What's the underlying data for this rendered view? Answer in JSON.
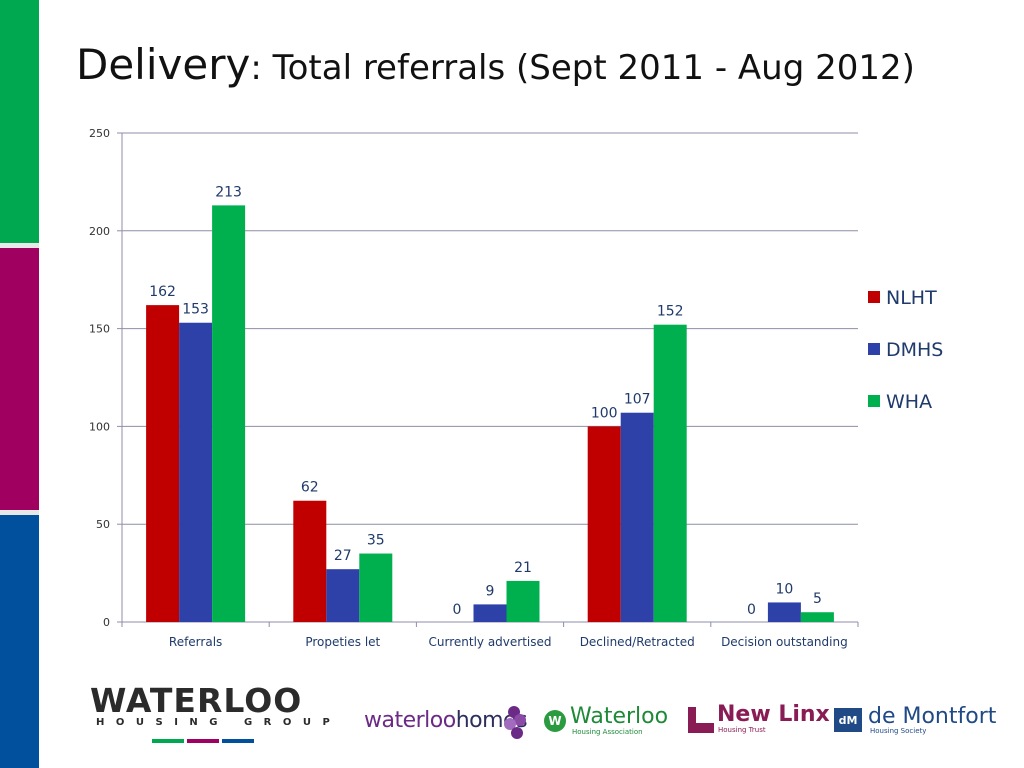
{
  "title": {
    "main": "Delivery",
    "rest": ": Total referrals (Sept 2011 - Aug 2012)"
  },
  "colors": {
    "nlht": "#c00000",
    "dmhs": "#2e41a8",
    "wha": "#00b04f",
    "stripe_green": "#00a94f",
    "stripe_magenta": "#a00060",
    "stripe_blue": "#00509e"
  },
  "chart_data": {
    "type": "bar",
    "title": "",
    "xlabel": "",
    "ylabel": "",
    "categories": [
      "Referrals",
      "Propeties let",
      "Currently advertised",
      "Declined/Retracted",
      "Decision outstanding"
    ],
    "series": [
      {
        "name": "NLHT",
        "values": [
          162,
          62,
          0,
          100,
          0
        ],
        "color": "#c00000"
      },
      {
        "name": "DMHS",
        "values": [
          153,
          27,
          9,
          107,
          10
        ],
        "color": "#2e41a8"
      },
      {
        "name": "WHA",
        "values": [
          213,
          35,
          21,
          152,
          5
        ],
        "color": "#00b04f"
      }
    ],
    "data_labels": [
      [
        "162",
        "62",
        "0",
        "100",
        "0"
      ],
      [
        "153",
        "27",
        "9",
        "107",
        "10"
      ],
      [
        "213",
        "35",
        "21",
        "152",
        "5"
      ]
    ],
    "ylim": [
      0,
      250
    ],
    "yticks": [
      0,
      50,
      100,
      150,
      200,
      250
    ],
    "grid": true,
    "legend_position": "right"
  },
  "footer": {
    "waterloo_group": {
      "name": "WATERLOO",
      "tagline": "HOUSING GROUP"
    },
    "waterloo_homes": {
      "part1": "waterloo",
      "part2": "homes"
    },
    "waterloo_ha": {
      "mark": "W",
      "name": "Waterloo",
      "tagline": "Housing Association"
    },
    "new_linx": {
      "name": "New Linx",
      "tagline": "Housing Trust"
    },
    "de_montfort": {
      "mark": "dM",
      "name": "de Montfort",
      "tagline": "Housing Society"
    }
  }
}
